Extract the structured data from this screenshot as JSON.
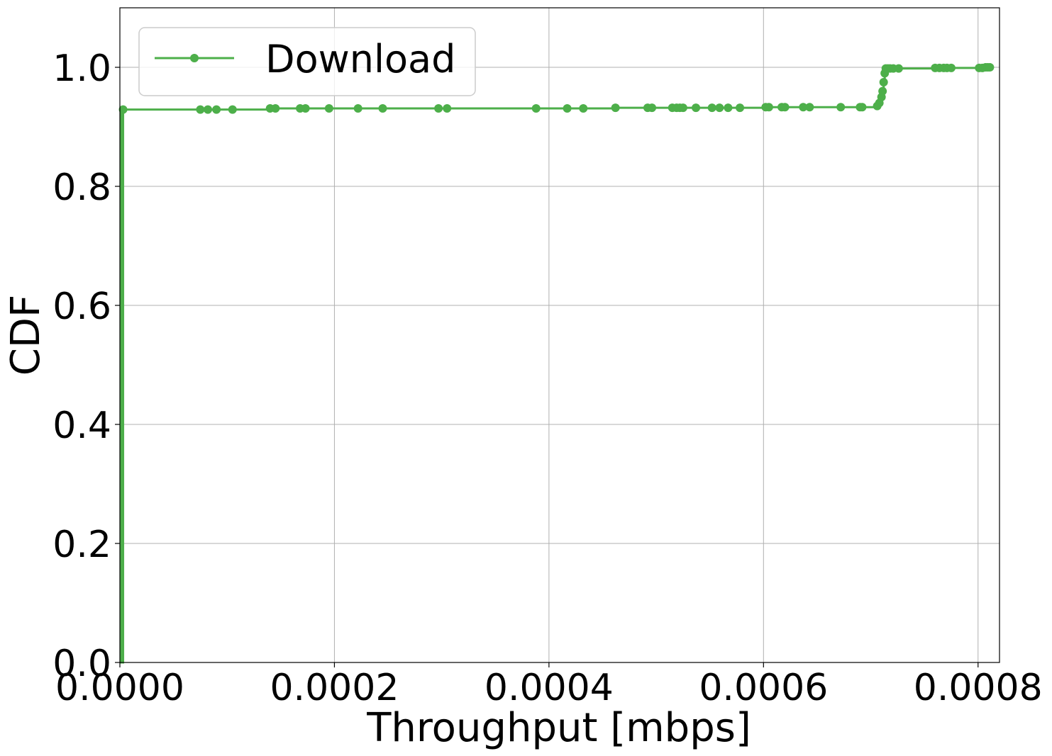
{
  "chart_data": {
    "type": "line",
    "title": "",
    "xlabel": "Throughput [mbps]",
    "ylabel": "CDF",
    "xlim": [
      0.0,
      0.00082
    ],
    "ylim": [
      0.0,
      1.1
    ],
    "xticks": [
      "0.0000",
      "0.0002",
      "0.0004",
      "0.0006",
      "0.0008"
    ],
    "xtick_values": [
      0.0,
      0.0002,
      0.0004,
      0.0006,
      0.0008
    ],
    "yticks": [
      "0.0",
      "0.2",
      "0.4",
      "0.6",
      "0.8",
      "1.0"
    ],
    "ytick_values": [
      0.0,
      0.2,
      0.4,
      0.6,
      0.8,
      1.0
    ],
    "grid": true,
    "legend_position": "top-left",
    "series": [
      {
        "name": "Download",
        "color": "#4daf4a",
        "marker": "circle",
        "x": [
          0.0,
          3e-06,
          7.5e-05,
          8.2e-05,
          9e-05,
          0.000105,
          0.00014,
          0.000145,
          0.000168,
          0.000173,
          0.000195,
          0.000222,
          0.000245,
          0.000297,
          0.000305,
          0.000388,
          0.000417,
          0.000432,
          0.000462,
          0.000492,
          0.000496,
          0.000515,
          0.000519,
          0.000522,
          0.000525,
          0.000537,
          0.000552,
          0.000559,
          0.000567,
          0.000578,
          0.000602,
          0.000605,
          0.000617,
          0.00062,
          0.000637,
          0.000643,
          0.000672,
          0.00069,
          0.000692,
          0.000706,
          0.000708,
          0.00071,
          0.000711,
          0.000712,
          0.000713,
          0.000714,
          0.000716,
          0.000718,
          0.000721,
          0.000726,
          0.00076,
          0.000764,
          0.000768,
          0.000771,
          0.000775,
          0.000801,
          0.000804,
          0.000807,
          0.000809,
          0.000811
        ],
        "y": [
          0.0,
          0.929,
          0.929,
          0.929,
          0.929,
          0.929,
          0.931,
          0.931,
          0.931,
          0.931,
          0.931,
          0.931,
          0.931,
          0.931,
          0.931,
          0.931,
          0.931,
          0.931,
          0.932,
          0.932,
          0.932,
          0.932,
          0.932,
          0.932,
          0.932,
          0.932,
          0.932,
          0.932,
          0.932,
          0.932,
          0.933,
          0.933,
          0.933,
          0.933,
          0.933,
          0.933,
          0.933,
          0.933,
          0.933,
          0.935,
          0.94,
          0.95,
          0.96,
          0.975,
          0.99,
          0.998,
          0.998,
          0.998,
          0.998,
          0.998,
          0.999,
          0.999,
          0.999,
          0.999,
          0.999,
          0.999,
          0.999,
          1.0,
          1.0,
          1.0
        ]
      }
    ]
  }
}
